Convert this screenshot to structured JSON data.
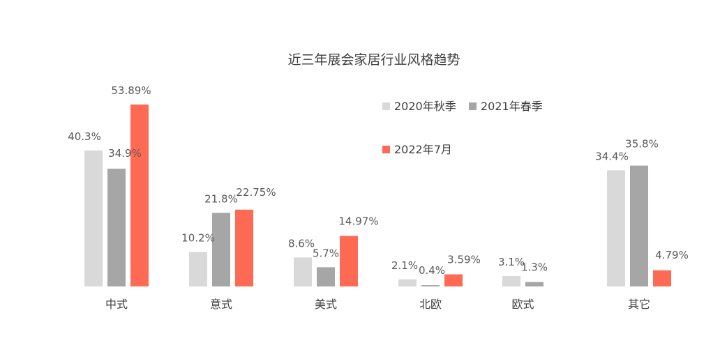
{
  "chart_data": {
    "type": "bar",
    "title": "近三年展会家居行业风格趋势",
    "categories": [
      "中式",
      "意式",
      "美式",
      "北欧",
      "欧式",
      "其它"
    ],
    "series": [
      {
        "name": "2020年秋季",
        "color": "#d9d9d9",
        "values": [
          40.3,
          10.2,
          8.6,
          2.1,
          3.1,
          34.4
        ],
        "labels": [
          "40.3%",
          "10.2%",
          "8.6%",
          "2.1%",
          "3.1%",
          "34.4%"
        ]
      },
      {
        "name": "2021年春季",
        "color": "#a6a6a6",
        "values": [
          34.9,
          21.8,
          5.7,
          0.4,
          1.3,
          35.8
        ],
        "labels": [
          "34.9%",
          "21.8%",
          "5.7%",
          "0.4%",
          "1.3%",
          "35.8%"
        ]
      },
      {
        "name": "2022年7月",
        "color": "#ff6a55",
        "values": [
          53.89,
          22.75,
          14.97,
          3.59,
          null,
          4.79
        ],
        "labels": [
          "53.89%",
          "22.75%",
          "14.97%",
          "3.59%",
          "",
          "4.79%"
        ]
      }
    ],
    "xlabel": "",
    "ylabel": "",
    "ylim": [
      0,
      55
    ],
    "grid": false,
    "legend": "top-right"
  }
}
